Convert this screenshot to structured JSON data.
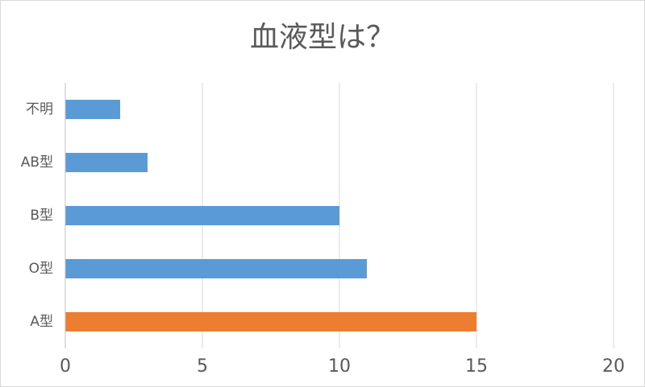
{
  "chart_data": {
    "type": "bar",
    "orientation": "horizontal",
    "title": "血液型は？",
    "categories": [
      "不明",
      "AB型",
      "B型",
      "O型",
      "A型"
    ],
    "values": [
      2,
      3,
      10,
      11,
      15
    ],
    "colors": [
      "#5b9bd5",
      "#5b9bd5",
      "#5b9bd5",
      "#5b9bd5",
      "#ed7d31"
    ],
    "xlim": [
      0,
      20
    ],
    "xticks": [
      0,
      5,
      10,
      15,
      20
    ],
    "grid": true
  }
}
